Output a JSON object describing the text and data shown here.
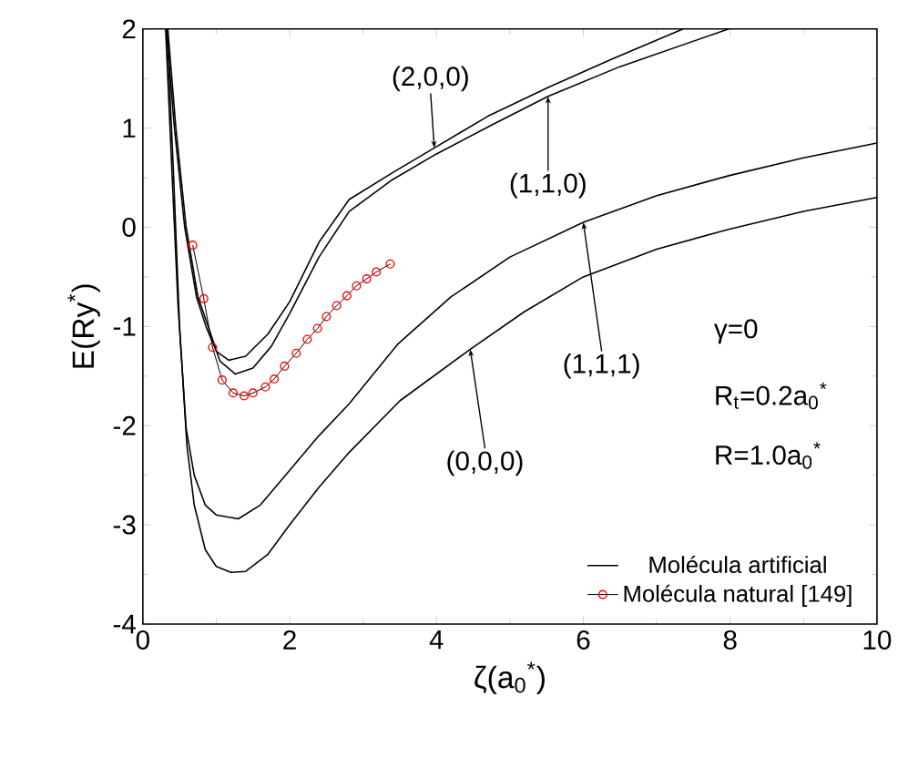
{
  "chart_data": {
    "type": "line",
    "xlabel": "ζ(a$_{0}$$^{*}$)",
    "ylabel": "E(Ry$^{*}$)",
    "xlim": [
      0,
      10
    ],
    "ylim": [
      -4,
      2
    ],
    "xticks": [
      0,
      2,
      4,
      6,
      8,
      10
    ],
    "yticks": [
      -4,
      -3,
      -2,
      -1,
      0,
      1,
      2
    ],
    "legend": "bottom right",
    "grid": false,
    "series": [
      {
        "name": "Molécula artificial",
        "color": "#000000",
        "x": [
          0.33,
          0.42,
          0.5,
          0.6,
          0.7,
          0.85,
          1.0,
          1.2,
          1.4,
          1.7,
          2.0,
          2.4,
          2.81,
          3.5,
          4.46,
          5.2,
          6.0,
          7.0,
          7.98,
          9.0,
          10
        ],
        "values": [
          2,
          0.5,
          -1.0,
          -2.2,
          -2.8,
          -3.25,
          -3.42,
          -3.48,
          -3.47,
          -3.3,
          -3.0,
          -2.62,
          -2.27,
          -1.75,
          -1.23,
          -0.85,
          -0.5,
          -0.22,
          -0.02,
          0.16,
          0.3
        ]
      },
      {
        "color": "#000000",
        "x": [
          0.31,
          0.4,
          0.48,
          0.59,
          0.7,
          0.85,
          1.0,
          1.3,
          1.6,
          2.0,
          2.4,
          2.81,
          3.47,
          4.2,
          5.0,
          6.0,
          7.0,
          7.98,
          9.0,
          10
        ],
        "values": [
          2,
          0.5,
          -0.8,
          -2.03,
          -2.5,
          -2.8,
          -2.9,
          -2.94,
          -2.8,
          -2.45,
          -2.1,
          -1.78,
          -1.18,
          -0.7,
          -0.3,
          0.05,
          0.32,
          0.52,
          0.7,
          0.85
        ]
      },
      {
        "color": "#000000",
        "x": [
          0.34,
          0.45,
          0.59,
          0.75,
          0.89,
          1.05,
          1.26,
          1.5,
          1.75,
          2.0,
          2.4,
          2.81,
          3.4,
          4.0,
          4.8,
          5.52,
          6.5,
          7.98
        ],
        "values": [
          2,
          1.0,
          0,
          -0.7,
          -1.0,
          -1.35,
          -1.48,
          -1.42,
          -1.2,
          -0.87,
          -0.3,
          0.16,
          0.48,
          0.74,
          1.05,
          1.32,
          1.62,
          2.0
        ]
      },
      {
        "color": "#000000",
        "x": [
          0.32,
          0.43,
          0.57,
          0.73,
          0.86,
          1.0,
          1.17,
          1.4,
          1.7,
          2.0,
          2.4,
          2.81,
          3.4,
          3.97,
          4.7,
          5.52,
          6.4,
          7.36
        ],
        "values": [
          2,
          1.0,
          0,
          -0.7,
          -1.0,
          -1.25,
          -1.34,
          -1.3,
          -1.08,
          -0.75,
          -0.15,
          0.28,
          0.55,
          0.8,
          1.12,
          1.41,
          1.7,
          2.0
        ]
      },
      {
        "name": "Molécula natural [149]",
        "color": "#ff0000",
        "marker": "circle",
        "x": [
          0.68,
          0.83,
          0.95,
          1.08,
          1.23,
          1.38,
          1.5,
          1.67,
          1.79,
          1.93,
          2.09,
          2.24,
          2.38,
          2.5,
          2.64,
          2.78,
          2.91,
          3.05,
          3.18,
          3.37
        ],
        "values": [
          -0.18,
          -0.72,
          -1.21,
          -1.54,
          -1.67,
          -1.7,
          -1.67,
          -1.61,
          -1.53,
          -1.4,
          -1.27,
          -1.13,
          -1.02,
          -0.9,
          -0.79,
          -0.69,
          -0.59,
          -0.52,
          -0.45,
          -0.37
        ]
      }
    ],
    "annotations": [
      {
        "text": "(0,0,0)",
        "x": 4.46,
        "y": -1.23
      },
      {
        "text": "(1,1,1)",
        "x": 6.0,
        "y": 0.05
      },
      {
        "text": "(1,1,0)",
        "x": 5.52,
        "y": 1.32
      },
      {
        "text": "(2,0,0)",
        "x": 3.97,
        "y": 0.8
      },
      "γ=0",
      "R$_{t}$=0.2a$_{0}$$^{*}$",
      "R=1.0a$_{0}$$^{*}$"
    ]
  }
}
